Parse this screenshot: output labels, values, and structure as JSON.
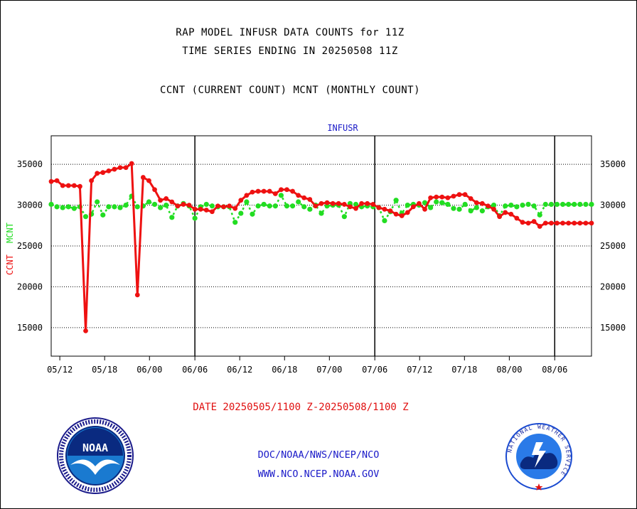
{
  "header": {
    "title_line1": "RAP MODEL INFUSR DATA COUNTS for 11Z",
    "title_line2": "TIME SERIES ENDING IN 20250508 11Z",
    "subtitle": "CCNT (CURRENT COUNT) MCNT (MONTHLY COUNT)"
  },
  "footer": {
    "date_range": "DATE 20250505/1100 Z-20250508/1100 Z",
    "org_path": "DOC/NOAA/NWS/NCEP/NCO",
    "website": "WWW.NCO.NCEP.NOAA.GOV"
  },
  "logos": {
    "noaa_text": "NOAA",
    "nws_ring_text": "NATIONAL WEATHER SERVICE"
  },
  "colors": {
    "ccnt": "#ee1111",
    "mcnt": "#22dd22",
    "label_blue": "#1a1ac8"
  },
  "chart_data": {
    "type": "line",
    "title": "INFUSR",
    "ylabel_left_red": "CCNT",
    "ylabel_left_green": "MCNT",
    "ylim": [
      11500,
      38500
    ],
    "yticks": [
      15000,
      20000,
      25000,
      30000,
      35000
    ],
    "ytick_labels": [
      "15000",
      "20000",
      "25000",
      "30000",
      "35000"
    ],
    "xlim": [
      0,
      94
    ],
    "xticks": [
      {
        "x": 1.5,
        "label": "05/12"
      },
      {
        "x": 9.3,
        "label": "05/18"
      },
      {
        "x": 17.1,
        "label": "06/00"
      },
      {
        "x": 25.0,
        "label": "06/06"
      },
      {
        "x": 32.8,
        "label": "06/12"
      },
      {
        "x": 40.6,
        "label": "06/18"
      },
      {
        "x": 48.4,
        "label": "07/00"
      },
      {
        "x": 56.3,
        "label": "07/06"
      },
      {
        "x": 64.1,
        "label": "07/12"
      },
      {
        "x": 71.9,
        "label": "07/18"
      },
      {
        "x": 79.7,
        "label": "08/00"
      },
      {
        "x": 87.6,
        "label": "08/06"
      }
    ],
    "vlines": [
      25.0,
      56.3,
      87.6
    ],
    "series": [
      {
        "name": "CCNT",
        "color": "#ee1111",
        "x": [
          0,
          1,
          2,
          3,
          4,
          5,
          6,
          7,
          8,
          9,
          10,
          11,
          12,
          13,
          14,
          15,
          16,
          17,
          18,
          19,
          20,
          21,
          22,
          23,
          24,
          25,
          26,
          27,
          28,
          29,
          30,
          31,
          32,
          33,
          34,
          35,
          36,
          37,
          38,
          39,
          40,
          41,
          42,
          43,
          44,
          45,
          46,
          47,
          48,
          49,
          50,
          51,
          52,
          53,
          54,
          55,
          56,
          57,
          58,
          59,
          60,
          61,
          62,
          63,
          64,
          65,
          66,
          67,
          68,
          69,
          70,
          71,
          72,
          73,
          74,
          75,
          76,
          77,
          78,
          79,
          80,
          81,
          82,
          83,
          84,
          85,
          86,
          87,
          88,
          89,
          90,
          91,
          92,
          93,
          94
        ],
        "values": [
          32900,
          33000,
          32400,
          32400,
          32400,
          32300,
          14600,
          33000,
          33900,
          34000,
          34200,
          34400,
          34600,
          34600,
          35100,
          19000,
          33400,
          33000,
          31900,
          30600,
          30800,
          30400,
          29900,
          30100,
          30000,
          29500,
          29500,
          29400,
          29200,
          29900,
          29800,
          29900,
          29600,
          30600,
          31200,
          31600,
          31700,
          31700,
          31700,
          31400,
          31900,
          31900,
          31700,
          31200,
          30900,
          30700,
          29900,
          30200,
          30300,
          30200,
          30200,
          30100,
          29800,
          29600,
          30200,
          30200,
          30100,
          29700,
          29500,
          29300,
          28900,
          28700,
          29100,
          29800,
          30200,
          29500,
          30900,
          31000,
          31000,
          30900,
          31100,
          31300,
          31300,
          30800,
          30300,
          30200,
          29900,
          29500,
          28600,
          29100,
          28900,
          28400,
          27900,
          27800,
          28000,
          27400,
          27800,
          27800,
          27800,
          27800,
          27800,
          27800,
          27800,
          27800,
          27800
        ]
      },
      {
        "name": "MCNT",
        "color": "#22dd22",
        "x": [
          0,
          1,
          2,
          3,
          4,
          5,
          6,
          7,
          8,
          9,
          10,
          11,
          12,
          13,
          14,
          15,
          16,
          17,
          18,
          19,
          20,
          21,
          22,
          23,
          24,
          25,
          26,
          27,
          28,
          29,
          30,
          31,
          32,
          33,
          34,
          35,
          36,
          37,
          38,
          39,
          40,
          41,
          42,
          43,
          44,
          45,
          46,
          47,
          48,
          49,
          50,
          51,
          52,
          53,
          54,
          55,
          56,
          57,
          58,
          59,
          60,
          61,
          62,
          63,
          64,
          65,
          66,
          67,
          68,
          69,
          70,
          71,
          72,
          73,
          74,
          75,
          76,
          77,
          78,
          79,
          80,
          81,
          82,
          83,
          84,
          85,
          86,
          87,
          88,
          89,
          90,
          91,
          92,
          93,
          94
        ],
        "values": [
          30100,
          29800,
          29700,
          29800,
          29600,
          29800,
          28600,
          28900,
          30400,
          28800,
          29800,
          29800,
          29700,
          30000,
          31100,
          29800,
          29900,
          30400,
          30100,
          29700,
          30000,
          28500,
          29900,
          30200,
          29900,
          28400,
          29800,
          30100,
          29900,
          29800,
          29800,
          29800,
          27900,
          29000,
          30400,
          28900,
          29900,
          30100,
          29900,
          29900,
          31200,
          29900,
          29900,
          30400,
          29800,
          29500,
          30000,
          29000,
          29900,
          30000,
          30000,
          28600,
          30200,
          30100,
          29800,
          29900,
          29800,
          29700,
          28100,
          29200,
          30600,
          29000,
          30000,
          30100,
          30000,
          30300,
          29700,
          30400,
          30300,
          30100,
          29600,
          29500,
          30100,
          29300,
          29700,
          29300,
          29800,
          30000,
          28700,
          29900,
          30000,
          29800,
          30000,
          30100,
          29900,
          28800,
          30100,
          30100,
          30100,
          30100,
          30100,
          30100,
          30100,
          30100,
          30100
        ]
      }
    ]
  }
}
